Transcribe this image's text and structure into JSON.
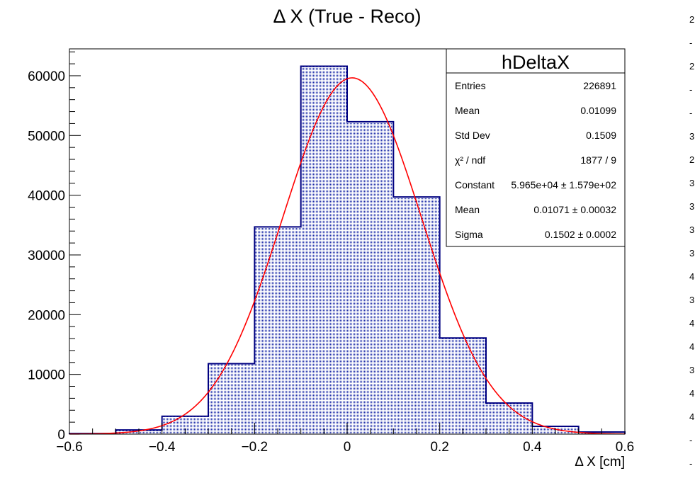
{
  "chart_data": {
    "type": "bar",
    "title": "Δ X (True - Reco)",
    "xlabel": "Δ X [cm]",
    "ylabel": "",
    "xlim": [
      -0.6,
      0.6
    ],
    "ylim": [
      0,
      64500
    ],
    "x_ticks": [
      -0.6,
      -0.4,
      -0.2,
      0,
      0.2,
      0.4,
      0.6
    ],
    "x_tick_labels": [
      "−0.6",
      "−0.4",
      "−0.2",
      "0",
      "0.2",
      "0.4",
      "0.6"
    ],
    "y_ticks": [
      0,
      10000,
      20000,
      30000,
      40000,
      50000,
      60000
    ],
    "y_tick_labels": [
      "0",
      "10000",
      "20000",
      "30000",
      "40000",
      "50000",
      "60000"
    ],
    "histogram": {
      "name": "hDeltaX",
      "bin_edges": [
        -0.6,
        -0.5,
        -0.4,
        -0.3,
        -0.2,
        -0.1,
        0.0,
        0.1,
        0.2,
        0.3,
        0.4,
        0.5,
        0.6
      ],
      "values": [
        100,
        700,
        3000,
        11800,
        34700,
        61600,
        52300,
        39700,
        16100,
        5200,
        1300,
        350
      ],
      "line_color": "#000080",
      "fill_color": "#1a2aa8"
    },
    "fit": {
      "function": "gaus",
      "constant": 59650,
      "mean": 0.01071,
      "sigma": 0.1502,
      "color": "#ff0000"
    },
    "stats_box": {
      "title": "hDeltaX",
      "position": "top-right",
      "rows": [
        {
          "label": "Entries",
          "value": "226891"
        },
        {
          "label": "Mean",
          "value": "0.01099"
        },
        {
          "label": "Std Dev",
          "value": "0.1509"
        },
        {
          "label": "χ² / ndf",
          "value": "1877 / 9"
        },
        {
          "label": "Constant",
          "value": "5.965e+04 ± 1.579e+02"
        },
        {
          "label": "Mean",
          "value": "0.01071 ± 0.00032"
        },
        {
          "label": "Sigma",
          "value": "0.1502 ± 0.0002"
        }
      ]
    }
  },
  "edge_strip_chars": [
    "2",
    "-",
    "2",
    "-",
    "-",
    "3",
    "2",
    "3",
    "3",
    "3",
    "3",
    "4",
    "3",
    "4",
    "4",
    "3",
    "4",
    "4",
    "-",
    "-"
  ]
}
